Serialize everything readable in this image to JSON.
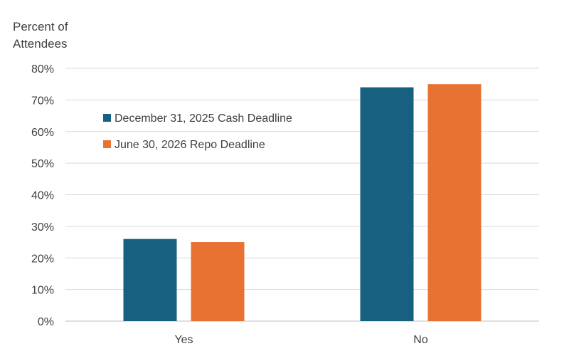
{
  "chart_data": {
    "type": "bar",
    "ylabel": [
      "Percent of",
      "Attendees"
    ],
    "xlabel": "",
    "categories": [
      "Yes",
      "No"
    ],
    "series": [
      {
        "name": "December 31, 2025 Cash Deadline",
        "values": [
          26,
          74
        ],
        "color": "#17607f"
      },
      {
        "name": "June 30, 2026 Repo Deadline",
        "values": [
          25,
          75
        ],
        "color": "#e87231"
      }
    ],
    "ylim": [
      0,
      80
    ],
    "yticks": [
      0,
      10,
      20,
      30,
      40,
      50,
      60,
      70,
      80
    ],
    "ytick_suffix": "%",
    "grid": true,
    "legend_position": "inside-top-left"
  }
}
